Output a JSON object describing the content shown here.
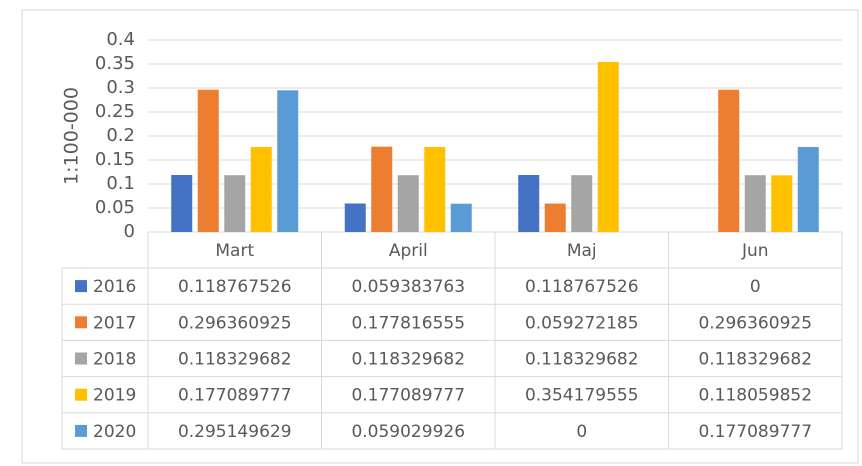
{
  "chart_data": {
    "type": "bar",
    "y_axis_label": "1:100-000",
    "categories": [
      "Mart",
      "April",
      "Maj",
      "Jun"
    ],
    "series": [
      {
        "name": "2016",
        "color": "#4472c4",
        "values": [
          0.118767526,
          0.059383763,
          0.118767526,
          0
        ]
      },
      {
        "name": "2017",
        "color": "#ed7d31",
        "values": [
          0.296360925,
          0.177816555,
          0.059272185,
          0.296360925
        ]
      },
      {
        "name": "2018",
        "color": "#a5a5a5",
        "values": [
          0.118329682,
          0.118329682,
          0.118329682,
          0.118329682
        ]
      },
      {
        "name": "2019",
        "color": "#ffc000",
        "values": [
          0.177089777,
          0.177089777,
          0.354179555,
          0.118059852
        ]
      },
      {
        "name": "2020",
        "color": "#5b9bd5",
        "values": [
          0.295149629,
          0.059029926,
          0,
          0.177089777
        ]
      }
    ],
    "ylim": [
      0,
      0.4
    ],
    "yticks": [
      0,
      0.05,
      0.1,
      0.15,
      0.2,
      0.25,
      0.3,
      0.35,
      0.4
    ],
    "grid": true
  }
}
